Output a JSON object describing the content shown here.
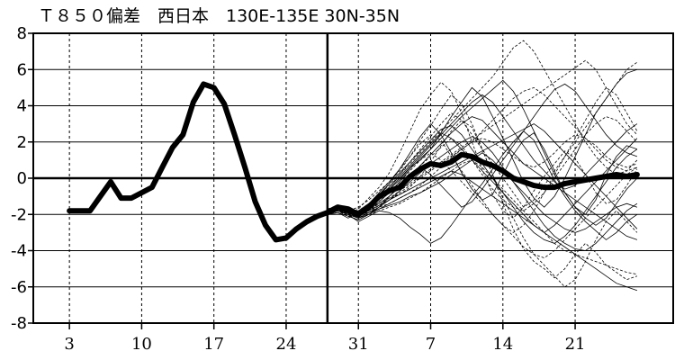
{
  "chart_data": {
    "type": "line",
    "title": "Ｔ８５０偏差　西日本　130E-135E  30N-35N",
    "xlabel": "",
    "ylabel": "",
    "ylim": [
      -8,
      8
    ],
    "yticks": [
      "8",
      "6",
      "4",
      "2",
      "0",
      "-2",
      "-4",
      "-6",
      "-8"
    ],
    "xticks": [
      {
        "day": 3,
        "label": "3"
      },
      {
        "day": 10,
        "label": "10"
      },
      {
        "day": 17,
        "label": "17"
      },
      {
        "day": 24,
        "label": "24"
      },
      {
        "day": 31,
        "label": "31"
      },
      {
        "day": 38,
        "label": "7"
      },
      {
        "day": 45,
        "label": "14"
      },
      {
        "day": 52,
        "label": "21"
      }
    ],
    "xlim": [
      -0.5,
      61.5
    ],
    "grid": true,
    "zero_line": true,
    "forecast_start_day": 28.0,
    "observed": {
      "x": [
        3,
        4,
        5,
        6,
        7,
        8,
        9,
        10,
        11,
        12,
        13,
        14,
        15,
        16,
        17,
        18,
        19,
        20,
        21,
        22,
        23,
        24,
        25,
        26,
        27,
        28,
        29,
        30,
        31
      ],
      "y": [
        -1.8,
        -1.8,
        -1.8,
        -1.0,
        -0.2,
        -1.1,
        -1.1,
        -0.8,
        -0.5,
        0.6,
        1.7,
        2.4,
        4.2,
        5.2,
        5.0,
        4.1,
        2.4,
        0.6,
        -1.3,
        -2.6,
        -3.4,
        -3.3,
        -2.8,
        -2.4,
        -2.1,
        -1.9,
        -1.6,
        -1.8,
        -2.0
      ]
    },
    "ensemble_mean": {
      "x": [
        28,
        29,
        30,
        31,
        32,
        33,
        34,
        35,
        36,
        37,
        38,
        39,
        40,
        41,
        42,
        43,
        44,
        45,
        46,
        47,
        48,
        49,
        50,
        51,
        52,
        53,
        54,
        55,
        56,
        57,
        58
      ],
      "y": [
        -1.9,
        -1.6,
        -1.7,
        -2.0,
        -1.6,
        -1.0,
        -0.7,
        -0.5,
        0.1,
        0.5,
        0.8,
        0.7,
        0.9,
        1.3,
        1.2,
        0.9,
        0.7,
        0.4,
        0.0,
        -0.2,
        -0.4,
        -0.5,
        -0.5,
        -0.3,
        -0.2,
        -0.1,
        0.0,
        0.1,
        0.2,
        0.1,
        0.2
      ]
    },
    "ensemble_members": [
      {
        "style": "solid",
        "y": [
          -1.9,
          -1.7,
          -1.9,
          -2.2,
          -1.5,
          -0.8,
          -0.2,
          0.5,
          1.4,
          2.3,
          3.0,
          2.4,
          1.4,
          0.3,
          -0.6,
          -1.2,
          -0.9,
          0.2,
          1.3,
          2.1,
          2.5,
          1.6,
          0.4,
          -0.8,
          -1.6,
          -2.0,
          -1.2,
          0.2,
          1.2,
          1.8,
          1.6
        ]
      },
      {
        "style": "dashed",
        "y": [
          -1.8,
          -1.6,
          -2.0,
          -1.7,
          -1.1,
          -0.5,
          0.3,
          1.4,
          2.6,
          3.8,
          4.6,
          5.3,
          4.8,
          3.6,
          2.0,
          0.5,
          -0.9,
          -1.8,
          -2.2,
          -1.6,
          -0.7,
          0.1,
          0.8,
          1.5,
          1.1,
          0.2,
          -0.8,
          -1.4,
          -1.2,
          -0.4,
          0.5
        ]
      },
      {
        "style": "solid",
        "y": [
          -2.0,
          -1.9,
          -2.2,
          -1.9,
          -1.5,
          -1.2,
          -0.6,
          -0.1,
          0.6,
          1.0,
          1.6,
          2.5,
          3.4,
          4.2,
          5.0,
          4.5,
          3.4,
          2.2,
          1.0,
          -0.2,
          -1.1,
          -1.6,
          -1.0,
          0.0,
          1.2,
          2.4,
          3.6,
          4.4,
          5.2,
          5.8,
          6.0
        ]
      },
      {
        "style": "dashed",
        "y": [
          -1.7,
          -1.5,
          -1.8,
          -2.1,
          -1.8,
          -1.4,
          -1.1,
          -0.9,
          -0.5,
          0.1,
          0.9,
          1.8,
          2.6,
          3.2,
          2.8,
          1.6,
          0.2,
          -1.4,
          -2.8,
          -3.9,
          -4.6,
          -5.0,
          -5.5,
          -5.0,
          -4.2,
          -3.6,
          -4.1,
          -4.8,
          -5.2,
          -5.6,
          -5.4
        ]
      },
      {
        "style": "solid",
        "y": [
          -1.9,
          -1.8,
          -2.0,
          -2.4,
          -2.1,
          -1.8,
          -1.9,
          -2.2,
          -2.7,
          -3.1,
          -3.6,
          -3.3,
          -2.6,
          -1.8,
          -1.0,
          -0.3,
          0.5,
          1.3,
          2.0,
          2.6,
          2.1,
          1.0,
          -0.1,
          -1.0,
          -1.8,
          -2.4,
          -2.9,
          -3.4,
          -3.0,
          -2.4,
          -2.0
        ]
      },
      {
        "style": "dashed",
        "y": [
          -1.8,
          -1.7,
          -1.8,
          -1.6,
          -1.2,
          -0.7,
          -0.2,
          0.4,
          1.2,
          2.1,
          2.9,
          3.8,
          4.6,
          4.1,
          3.0,
          1.6,
          0.2,
          -1.1,
          -2.2,
          -3.3,
          -4.2,
          -4.8,
          -5.4,
          -6.0,
          -5.6,
          -4.6,
          -3.4,
          -2.4,
          -1.8,
          -2.4,
          -3.0
        ]
      },
      {
        "style": "solid",
        "y": [
          -1.9,
          -1.6,
          -1.8,
          -2.0,
          -1.9,
          -1.6,
          -1.0,
          -0.4,
          0.2,
          0.6,
          0.2,
          -0.4,
          -1.0,
          -1.6,
          -1.3,
          -0.6,
          0.2,
          1.0,
          1.8,
          2.6,
          3.4,
          4.2,
          4.9,
          5.2,
          4.8,
          4.0,
          3.2,
          2.4,
          1.8,
          1.4,
          1.2
        ]
      },
      {
        "style": "dashed",
        "y": [
          -1.9,
          -1.8,
          -2.1,
          -2.0,
          -1.6,
          -1.0,
          -0.3,
          0.5,
          1.2,
          1.9,
          2.4,
          2.1,
          1.2,
          0.4,
          -0.4,
          -1.2,
          -2.0,
          -2.6,
          -3.0,
          -2.6,
          -1.8,
          -0.8,
          0.2,
          1.2,
          2.2,
          3.2,
          4.2,
          5.0,
          4.6,
          3.6,
          2.6
        ]
      },
      {
        "style": "solid",
        "y": [
          -2.0,
          -1.8,
          -1.9,
          -2.1,
          -1.7,
          -1.3,
          -0.8,
          -0.2,
          0.5,
          1.1,
          1.6,
          2.2,
          2.8,
          3.4,
          3.9,
          4.4,
          4.9,
          5.4,
          4.8,
          3.8,
          2.6,
          1.4,
          0.2,
          -0.8,
          -1.6,
          -2.2,
          -2.6,
          -2.2,
          -1.4,
          -0.6,
          0.0
        ]
      },
      {
        "style": "dashed",
        "y": [
          -1.8,
          -1.6,
          -1.9,
          -2.2,
          -1.9,
          -1.6,
          -1.4,
          -1.1,
          -0.8,
          -0.4,
          0.1,
          0.6,
          1.1,
          1.6,
          2.0,
          2.2,
          2.0,
          1.6,
          1.2,
          0.8,
          0.6,
          0.9,
          1.4,
          2.0,
          2.4,
          2.2,
          1.8,
          1.2,
          0.8,
          0.6,
          0.8
        ]
      },
      {
        "style": "solid",
        "y": [
          -1.9,
          -1.7,
          -1.9,
          -2.1,
          -1.5,
          -0.9,
          -0.3,
          0.3,
          0.9,
          1.5,
          2.1,
          2.7,
          2.9,
          2.4,
          1.6,
          0.8,
          0.0,
          -0.8,
          -1.6,
          -2.4,
          -3.0,
          -3.4,
          -3.6,
          -3.2,
          -2.6,
          -1.8,
          -1.0,
          -0.2,
          0.6,
          1.2,
          1.6
        ]
      },
      {
        "style": "dashed",
        "y": [
          -1.8,
          -1.7,
          -2.0,
          -1.8,
          -1.4,
          -0.9,
          -0.4,
          0.2,
          0.8,
          1.4,
          2.0,
          2.6,
          3.2,
          3.8,
          4.4,
          5.0,
          5.6,
          6.4,
          7.2,
          7.6,
          7.0,
          6.0,
          5.0,
          4.0,
          3.0,
          2.0,
          1.2,
          0.6,
          0.2,
          0.4,
          1.0
        ]
      },
      {
        "style": "solid",
        "y": [
          -2.0,
          -1.9,
          -2.1,
          -2.3,
          -2.0,
          -1.6,
          -1.2,
          -0.7,
          -0.2,
          0.3,
          0.8,
          1.2,
          1.6,
          2.0,
          2.3,
          2.0,
          1.4,
          0.6,
          -0.2,
          -1.0,
          -1.8,
          -2.6,
          -3.2,
          -3.6,
          -3.9,
          -4.0,
          -3.6,
          -3.0,
          -2.4,
          -1.8,
          -1.4
        ]
      },
      {
        "style": "dashed",
        "y": [
          -1.9,
          -1.8,
          -2.0,
          -1.9,
          -1.6,
          -1.2,
          -0.8,
          -0.3,
          0.2,
          0.7,
          1.2,
          1.7,
          2.2,
          1.8,
          1.0,
          0.2,
          -0.6,
          -1.2,
          -1.6,
          -1.8,
          -1.4,
          -0.8,
          0.0,
          0.8,
          1.6,
          2.4,
          3.0,
          3.4,
          3.2,
          2.6,
          2.0
        ]
      },
      {
        "style": "solid",
        "y": [
          -1.8,
          -1.6,
          -1.8,
          -2.0,
          -1.7,
          -1.4,
          -1.0,
          -0.5,
          0.1,
          0.7,
          1.3,
          1.9,
          2.5,
          3.0,
          3.4,
          3.2,
          2.6,
          2.0,
          1.4,
          0.8,
          0.4,
          0.0,
          -0.4,
          -0.8,
          -1.2,
          -1.6,
          -2.0,
          -2.4,
          -2.8,
          -3.2,
          -3.4
        ]
      },
      {
        "style": "dashed",
        "y": [
          -1.9,
          -1.7,
          -2.0,
          -2.2,
          -1.9,
          -1.5,
          -1.2,
          -0.8,
          -0.4,
          0.0,
          0.4,
          0.8,
          1.2,
          1.6,
          2.0,
          2.6,
          3.2,
          3.8,
          4.4,
          4.8,
          5.0,
          4.6,
          4.0,
          3.4,
          2.8,
          2.2,
          1.6,
          1.0,
          0.6,
          0.4,
          0.6
        ]
      },
      {
        "style": "solid",
        "y": [
          -2.0,
          -1.8,
          -2.0,
          -2.2,
          -1.9,
          -1.7,
          -1.5,
          -1.3,
          -1.0,
          -0.8,
          -0.5,
          -0.2,
          0.2,
          0.6,
          1.0,
          1.4,
          1.0,
          0.4,
          -0.2,
          -0.8,
          -1.4,
          -2.0,
          -2.4,
          -2.8,
          -3.0,
          -2.8,
          -2.4,
          -2.0,
          -1.6,
          -1.4,
          -1.6
        ]
      },
      {
        "style": "dashed",
        "y": [
          -1.8,
          -1.6,
          -1.9,
          -2.1,
          -1.8,
          -1.3,
          -0.8,
          -0.2,
          0.4,
          1.0,
          1.4,
          1.0,
          0.4,
          -0.2,
          -0.8,
          -1.4,
          -2.0,
          -2.6,
          -3.2,
          -3.8,
          -4.2,
          -4.4,
          -4.0,
          -3.4,
          -2.8,
          -2.2,
          -1.6,
          -1.0,
          -0.4,
          0.2,
          0.6
        ]
      },
      {
        "style": "solid",
        "y": [
          -1.9,
          -1.7,
          -1.9,
          -2.0,
          -1.6,
          -1.1,
          -0.6,
          0.0,
          0.6,
          1.2,
          1.8,
          2.4,
          3.0,
          3.6,
          4.2,
          4.6,
          4.2,
          3.4,
          2.6,
          1.8,
          1.0,
          0.4,
          -0.2,
          -0.6,
          -0.4,
          0.2,
          0.8,
          1.4,
          2.0,
          2.6,
          3.0
        ]
      },
      {
        "style": "dashed",
        "y": [
          -1.9,
          -1.8,
          -2.1,
          -2.3,
          -2.0,
          -1.8,
          -1.6,
          -1.4,
          -1.1,
          -0.8,
          -0.4,
          0.0,
          0.4,
          0.8,
          1.0,
          0.6,
          0.0,
          -0.6,
          -1.2,
          -1.8,
          -2.4,
          -3.0,
          -3.6,
          -4.0,
          -4.2,
          -4.4,
          -4.6,
          -4.8,
          -5.0,
          -5.2,
          -5.3
        ]
      },
      {
        "style": "solid",
        "y": [
          -1.8,
          -1.7,
          -1.9,
          -1.8,
          -1.4,
          -1.0,
          -0.5,
          0.1,
          0.7,
          1.3,
          1.9,
          2.5,
          2.2,
          1.6,
          1.0,
          0.4,
          -0.2,
          -0.8,
          -1.4,
          -2.0,
          -2.6,
          -3.0,
          -2.6,
          -2.0,
          -1.4,
          -0.8,
          -0.2,
          0.4,
          1.0,
          1.6,
          2.2
        ]
      },
      {
        "style": "dashed",
        "y": [
          -1.9,
          -1.7,
          -2.0,
          -2.1,
          -1.8,
          -1.5,
          -1.1,
          -0.7,
          -0.3,
          0.1,
          0.5,
          0.9,
          1.3,
          1.7,
          2.1,
          2.5,
          2.9,
          3.3,
          3.7,
          4.1,
          4.5,
          4.9,
          5.3,
          5.7,
          6.1,
          6.5,
          6.0,
          5.0,
          4.0,
          3.0,
          2.4
        ]
      },
      {
        "style": "solid",
        "y": [
          -2.0,
          -1.8,
          -2.0,
          -2.2,
          -2.0,
          -1.7,
          -1.4,
          -1.1,
          -0.8,
          -0.5,
          -0.2,
          0.1,
          0.4,
          0.2,
          -0.2,
          -0.6,
          -1.0,
          -1.4,
          -1.8,
          -2.2,
          -2.6,
          -3.0,
          -3.4,
          -3.8,
          -4.2,
          -4.6,
          -5.0,
          -5.4,
          -5.8,
          -6.0,
          -6.2
        ]
      },
      {
        "style": "dashed",
        "y": [
          -1.8,
          -1.6,
          -1.8,
          -2.0,
          -1.6,
          -1.1,
          -0.5,
          0.2,
          0.9,
          1.6,
          2.3,
          3.0,
          3.6,
          3.2,
          2.4,
          1.6,
          0.8,
          0.0,
          -0.8,
          -1.6,
          -1.2,
          -0.4,
          0.4,
          1.2,
          2.0,
          2.8,
          3.6,
          4.4,
          5.2,
          6.0,
          6.4
        ]
      },
      {
        "style": "solid",
        "y": [
          -1.9,
          -1.7,
          -1.9,
          -2.1,
          -1.8,
          -1.5,
          -1.2,
          -0.9,
          -0.6,
          -0.3,
          0.0,
          0.3,
          0.6,
          0.9,
          1.2,
          1.5,
          1.8,
          2.1,
          2.4,
          2.7,
          3.0,
          2.6,
          2.0,
          1.4,
          0.8,
          0.2,
          -0.4,
          -1.0,
          -1.6,
          -2.2,
          -2.8
        ]
      }
    ]
  }
}
